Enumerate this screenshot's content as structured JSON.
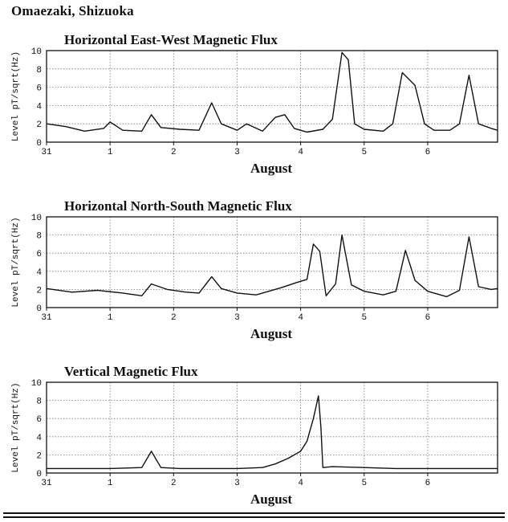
{
  "header": {
    "station": "Omaezaki,  Shizuoka"
  },
  "chart_data": [
    {
      "type": "line",
      "title": "Horizontal East-West Magnetic Flux",
      "xlabel": "August",
      "ylabel": "Level pT/sqrt(Hz)",
      "xlim": [
        0,
        7.1
      ],
      "ylim": [
        0,
        10
      ],
      "xticks": [
        0,
        1,
        2,
        3,
        4,
        5,
        6
      ],
      "xtick_labels": [
        "31",
        "1",
        "2",
        "3",
        "4",
        "5",
        "6"
      ],
      "yticks": [
        0,
        2,
        4,
        6,
        8,
        10
      ],
      "ytick_labels": [
        "0",
        "2",
        "4",
        "6",
        "8",
        "10"
      ],
      "grid": true,
      "series": [
        {
          "values": [
            [
              0,
              2.0
            ],
            [
              0.3,
              1.7
            ],
            [
              0.6,
              1.2
            ],
            [
              0.9,
              1.5
            ],
            [
              1.0,
              2.2
            ],
            [
              1.2,
              1.3
            ],
            [
              1.5,
              1.2
            ],
            [
              1.65,
              3.0
            ],
            [
              1.8,
              1.6
            ],
            [
              2.1,
              1.4
            ],
            [
              2.4,
              1.3
            ],
            [
              2.6,
              4.3
            ],
            [
              2.75,
              2.0
            ],
            [
              3.0,
              1.3
            ],
            [
              3.15,
              2.0
            ],
            [
              3.4,
              1.2
            ],
            [
              3.6,
              2.7
            ],
            [
              3.75,
              3.0
            ],
            [
              3.9,
              1.5
            ],
            [
              4.1,
              1.1
            ],
            [
              4.35,
              1.4
            ],
            [
              4.5,
              2.5
            ],
            [
              4.65,
              9.8
            ],
            [
              4.75,
              9.0
            ],
            [
              4.85,
              2.0
            ],
            [
              5.0,
              1.4
            ],
            [
              5.3,
              1.2
            ],
            [
              5.45,
              2.0
            ],
            [
              5.6,
              7.6
            ],
            [
              5.8,
              6.2
            ],
            [
              5.95,
              2.0
            ],
            [
              6.1,
              1.3
            ],
            [
              6.35,
              1.3
            ],
            [
              6.5,
              2.0
            ],
            [
              6.65,
              7.3
            ],
            [
              6.8,
              2.0
            ],
            [
              7.0,
              1.5
            ],
            [
              7.1,
              1.3
            ]
          ]
        }
      ]
    },
    {
      "type": "line",
      "title": "Horizontal North-South Magnetic Flux",
      "xlabel": "August",
      "ylabel": "Level pT/sqrt(Hz)",
      "xlim": [
        0,
        7.1
      ],
      "ylim": [
        0,
        10
      ],
      "xticks": [
        0,
        1,
        2,
        3,
        4,
        5,
        6
      ],
      "xtick_labels": [
        "31",
        "1",
        "2",
        "3",
        "4",
        "5",
        "6"
      ],
      "yticks": [
        0,
        2,
        4,
        6,
        8,
        10
      ],
      "ytick_labels": [
        "0",
        "2",
        "4",
        "6",
        "8",
        "10"
      ],
      "grid": true,
      "series": [
        {
          "values": [
            [
              0,
              2.1
            ],
            [
              0.4,
              1.7
            ],
            [
              0.8,
              1.9
            ],
            [
              1.2,
              1.6
            ],
            [
              1.5,
              1.3
            ],
            [
              1.65,
              2.6
            ],
            [
              1.9,
              2.0
            ],
            [
              2.2,
              1.7
            ],
            [
              2.4,
              1.6
            ],
            [
              2.6,
              3.4
            ],
            [
              2.75,
              2.1
            ],
            [
              3.0,
              1.6
            ],
            [
              3.3,
              1.4
            ],
            [
              3.5,
              1.8
            ],
            [
              3.7,
              2.2
            ],
            [
              3.95,
              2.8
            ],
            [
              4.1,
              3.1
            ],
            [
              4.2,
              7.0
            ],
            [
              4.3,
              6.2
            ],
            [
              4.4,
              1.3
            ],
            [
              4.55,
              2.6
            ],
            [
              4.65,
              8.0
            ],
            [
              4.8,
              2.5
            ],
            [
              5.0,
              1.8
            ],
            [
              5.3,
              1.4
            ],
            [
              5.5,
              1.8
            ],
            [
              5.65,
              6.3
            ],
            [
              5.8,
              3.0
            ],
            [
              6.0,
              1.8
            ],
            [
              6.3,
              1.2
            ],
            [
              6.5,
              1.9
            ],
            [
              6.65,
              7.8
            ],
            [
              6.8,
              2.3
            ],
            [
              7.0,
              2.0
            ],
            [
              7.1,
              2.1
            ]
          ]
        }
      ]
    },
    {
      "type": "line",
      "title": "Vertical Magnetic Flux",
      "xlabel": "August",
      "ylabel": "Level pT/sqrt(Hz)",
      "xlim": [
        0,
        7.1
      ],
      "ylim": [
        0,
        10
      ],
      "xticks": [
        0,
        1,
        2,
        3,
        4,
        5,
        6
      ],
      "xtick_labels": [
        "31",
        "1",
        "2",
        "3",
        "4",
        "5",
        "6"
      ],
      "yticks": [
        0,
        2,
        4,
        6,
        8,
        10
      ],
      "ytick_labels": [
        "0",
        "2",
        "4",
        "6",
        "8",
        "10"
      ],
      "grid": true,
      "series": [
        {
          "values": [
            [
              0,
              0.5
            ],
            [
              1.0,
              0.5
            ],
            [
              1.5,
              0.6
            ],
            [
              1.65,
              2.4
            ],
            [
              1.8,
              0.6
            ],
            [
              2.1,
              0.5
            ],
            [
              2.5,
              0.5
            ],
            [
              3.0,
              0.5
            ],
            [
              3.4,
              0.6
            ],
            [
              3.6,
              1.0
            ],
            [
              3.8,
              1.6
            ],
            [
              4.0,
              2.4
            ],
            [
              4.1,
              3.5
            ],
            [
              4.2,
              6.0
            ],
            [
              4.28,
              8.5
            ],
            [
              4.32,
              5.0
            ],
            [
              4.35,
              0.6
            ],
            [
              4.5,
              0.7
            ],
            [
              5.0,
              0.6
            ],
            [
              5.5,
              0.5
            ],
            [
              6.0,
              0.5
            ],
            [
              6.5,
              0.5
            ],
            [
              7.1,
              0.5
            ]
          ]
        }
      ]
    }
  ]
}
